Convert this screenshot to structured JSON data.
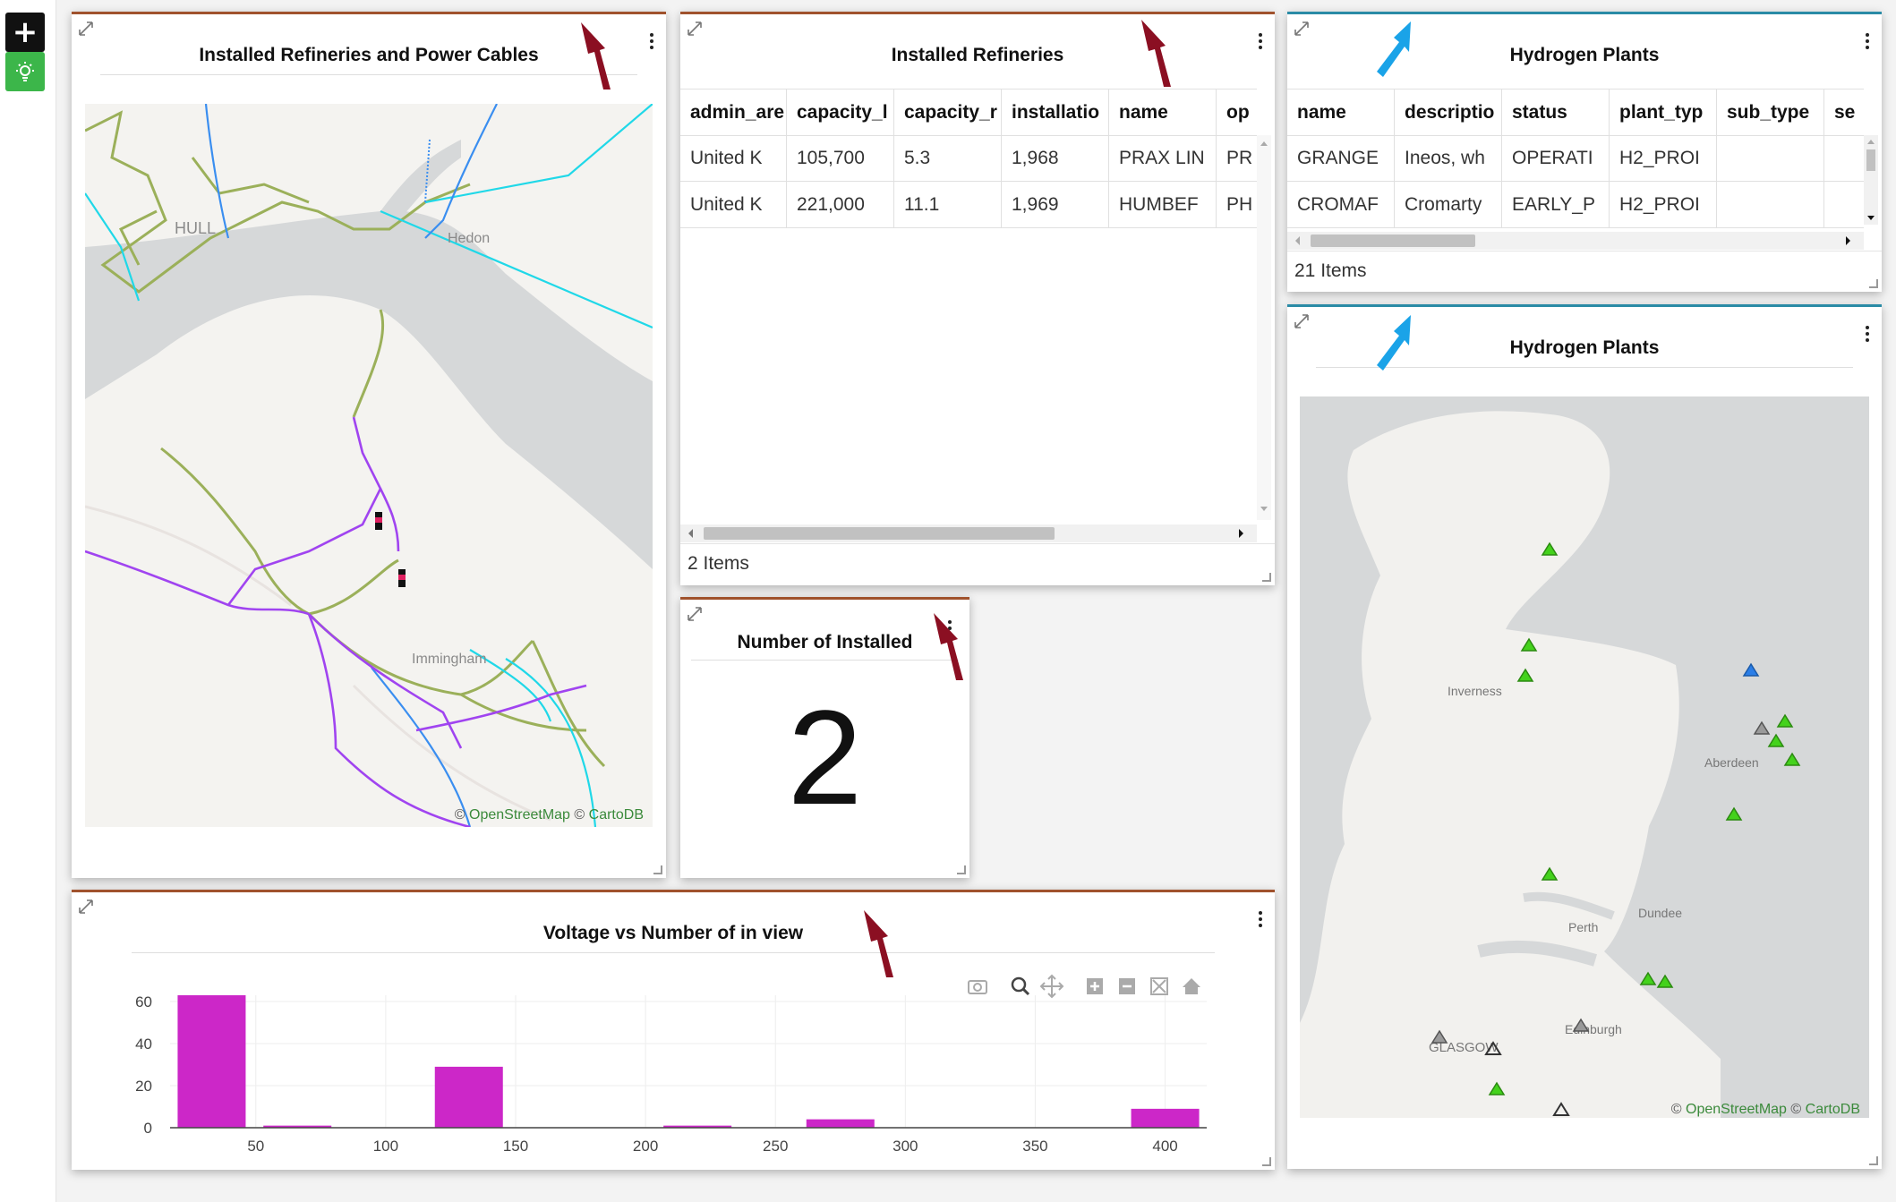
{
  "sidebar": {
    "add_icon": "plus-icon",
    "theme_icon": "lightbulb-icon"
  },
  "panels": {
    "map_refineries": {
      "title": "Installed Refineries and Power Cables",
      "labels": [
        "HULL",
        "Hedon",
        "Immingham"
      ],
      "attribution_prefix": "© ",
      "attribution_osm": "OpenStreetMap",
      "attribution_mid": " © ",
      "attribution_carto": "CartoDB"
    },
    "table_refineries": {
      "title": "Installed Refineries",
      "columns": [
        "admin_are",
        "capacity_l",
        "capacity_r",
        "installatio",
        "name",
        "op"
      ],
      "rows": [
        [
          "United K",
          "105,700",
          "5.3",
          "1,968",
          "PRAX LIN",
          "PR"
        ],
        [
          "United K",
          "221,000",
          "11.1",
          "1,969",
          "HUMBEF",
          "PH"
        ]
      ],
      "footer": "2 Items"
    },
    "kpi": {
      "title": "Number of Installed",
      "value": "2"
    },
    "table_hydrogen": {
      "title": "Hydrogen Plants",
      "columns": [
        "name",
        "descriptio",
        "status",
        "plant_typ",
        "sub_type",
        "se"
      ],
      "rows": [
        [
          "GRANGE",
          "Ineos, wh",
          "OPERATI",
          "H2_PROI",
          "",
          ""
        ],
        [
          "CROMAF",
          "Cromarty",
          "EARLY_P",
          "H2_PROI",
          "",
          ""
        ]
      ],
      "footer": "21 Items"
    },
    "map_hydrogen": {
      "title": "Hydrogen Plants",
      "labels": [
        "Inverness",
        "Aberdeen",
        "Dundee",
        "Perth",
        "Edinburgh",
        "GLASGOW"
      ],
      "attribution_prefix": "© ",
      "attribution_osm": "OpenStreetMap",
      "attribution_mid": " © ",
      "attribution_carto": "CartoDB"
    },
    "chart": {
      "title": "Voltage vs Number of in view",
      "toolbar_icons": [
        "camera-icon",
        "zoom-icon",
        "pan-icon",
        "zoom-in-icon",
        "zoom-out-icon",
        "autoscale-icon",
        "home-icon"
      ]
    }
  },
  "colors": {
    "brown_accent": "#a0522d",
    "teal_accent": "#2a8ba6",
    "bar": "#cc27c8",
    "arrow_dark": "#8b0f22",
    "arrow_blue": "#1aa3e8"
  },
  "chart_data": {
    "type": "bar",
    "title": "Voltage vs Number of in view",
    "x": [
      33,
      66,
      132,
      220,
      275,
      400
    ],
    "values": [
      63,
      1,
      29,
      1,
      4,
      9
    ],
    "xticks": [
      50,
      100,
      150,
      200,
      250,
      300,
      350,
      400
    ],
    "yticks": [
      0,
      20,
      40,
      60
    ],
    "xlim": [
      17,
      416
    ],
    "ylim": [
      0,
      63
    ],
    "xlabel": "",
    "ylabel": ""
  }
}
